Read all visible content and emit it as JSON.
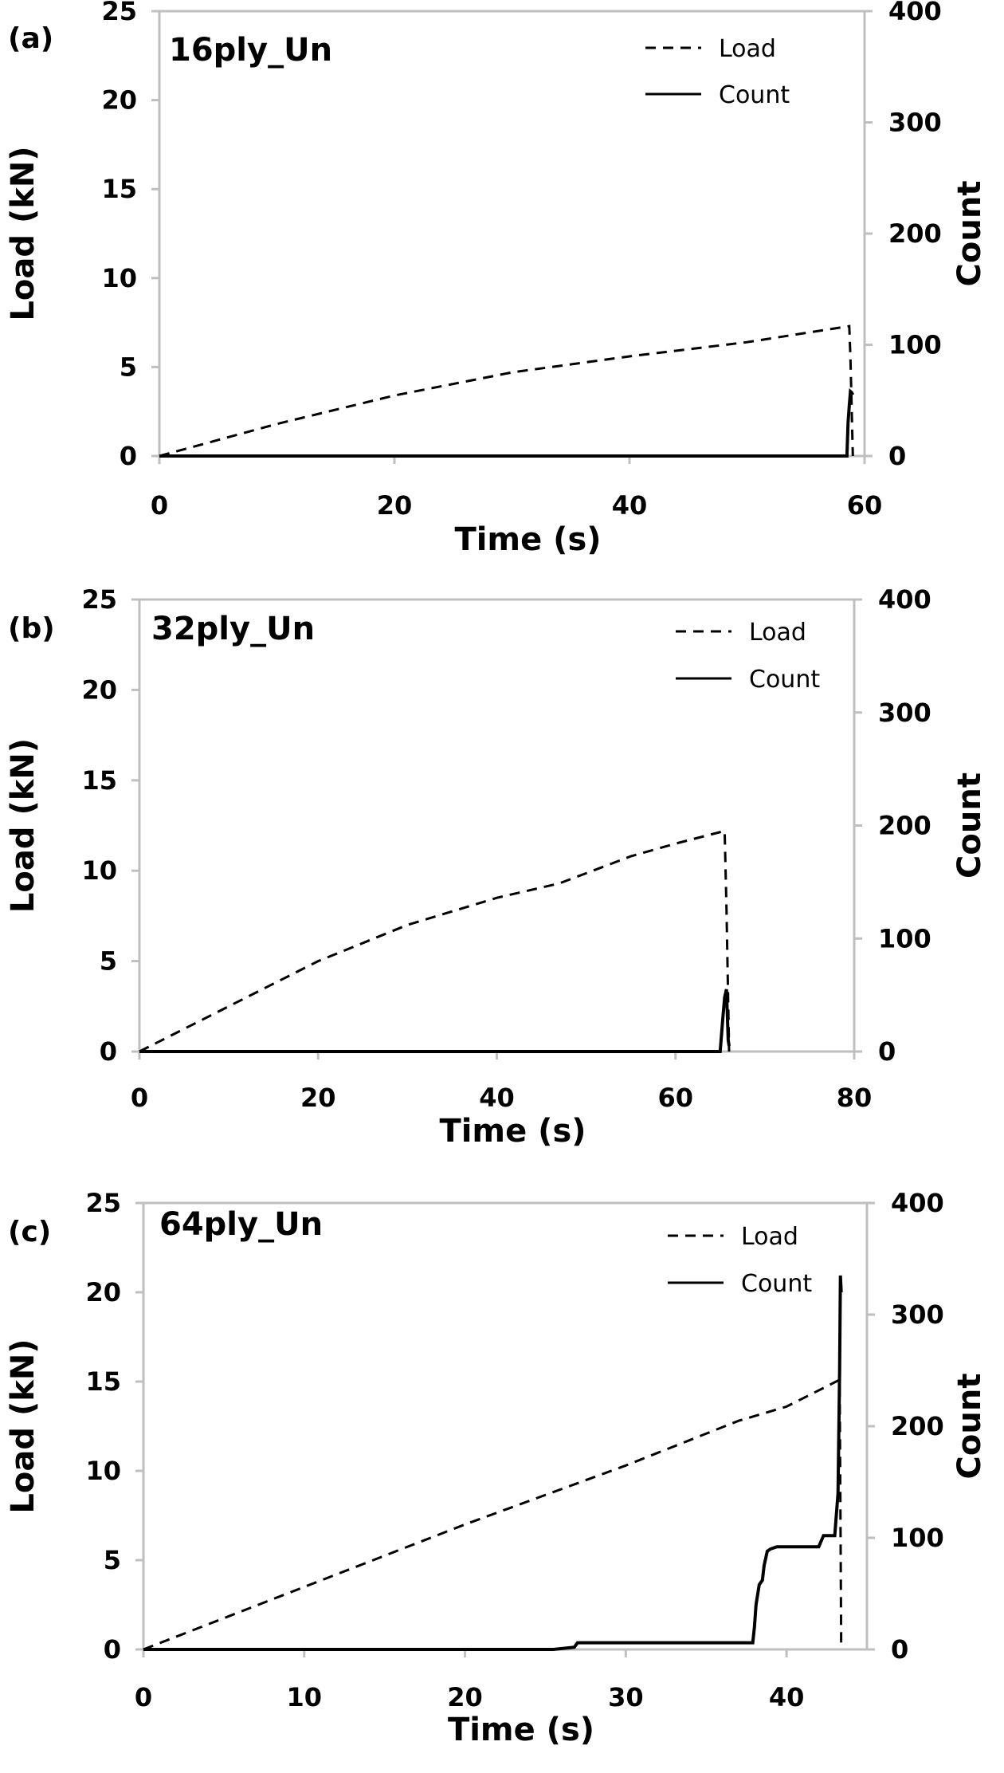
{
  "chart_data": [
    {
      "type": "line",
      "panel_label": "(a)",
      "title": "16ply_Un",
      "xlabel": "Time  (s)",
      "ylabel": "Load  (kN)",
      "y2label": "Count",
      "xlim": [
        0,
        60
      ],
      "ylim": [
        0,
        25
      ],
      "y2lim": [
        0,
        400
      ],
      "xticks": [
        "0",
        "20",
        "40",
        "60"
      ],
      "yticks": [
        "0",
        "5",
        "10",
        "15",
        "20",
        "25"
      ],
      "y2ticks": [
        "0",
        "100",
        "200",
        "300",
        "400"
      ],
      "legend": {
        "placement": "top-right",
        "entries": [
          "Load",
          "Count"
        ]
      },
      "series": [
        {
          "name": "Load",
          "axis": "left",
          "style": "dashed",
          "x": [
            0,
            10,
            20,
            30,
            40,
            50,
            58.7,
            58.8,
            59.0
          ],
          "y": [
            0,
            1.8,
            3.4,
            4.7,
            5.6,
            6.4,
            7.3,
            5.5,
            0
          ]
        },
        {
          "name": "Count",
          "axis": "right",
          "style": "solid",
          "x": [
            0,
            58.5,
            58.6,
            58.7,
            58.8,
            58.9,
            59.0
          ],
          "y": [
            0,
            0,
            30,
            45,
            58,
            57,
            55
          ]
        }
      ]
    },
    {
      "type": "line",
      "panel_label": "(b)",
      "title": "32ply_Un",
      "xlabel": "Time  (s)",
      "ylabel": "Load  (kN)",
      "y2label": "Count",
      "xlim": [
        0,
        80
      ],
      "ylim": [
        0,
        25
      ],
      "y2lim": [
        0,
        400
      ],
      "xticks": [
        "0",
        "20",
        "40",
        "60",
        "80"
      ],
      "yticks": [
        "0",
        "5",
        "10",
        "15",
        "20",
        "25"
      ],
      "y2ticks": [
        "0",
        "100",
        "200",
        "300",
        "400"
      ],
      "legend": {
        "placement": "top-right",
        "entries": [
          "Load",
          "Count"
        ]
      },
      "series": [
        {
          "name": "Load",
          "axis": "left",
          "style": "dashed",
          "x": [
            0,
            10,
            20,
            30,
            40,
            47,
            55,
            60,
            65.5,
            65.7,
            66.0
          ],
          "y": [
            0,
            2.5,
            5.0,
            7.0,
            8.5,
            9.3,
            10.8,
            11.5,
            12.2,
            8,
            0
          ]
        },
        {
          "name": "Count",
          "axis": "right",
          "style": "solid",
          "x": [
            0,
            65.0,
            65.3,
            65.5,
            65.7,
            65.9,
            66.0
          ],
          "y": [
            0,
            0,
            30,
            48,
            55,
            10,
            5
          ]
        }
      ]
    },
    {
      "type": "line",
      "panel_label": "(c)",
      "title": "64ply_Un",
      "xlabel": "Time  (s)",
      "ylabel": "Load  (kN)",
      "y2label": "Count",
      "xlim": [
        0,
        45
      ],
      "ylim": [
        0,
        25
      ],
      "y2lim": [
        0,
        400
      ],
      "xticks": [
        "0",
        "10",
        "20",
        "30",
        "40"
      ],
      "yticks": [
        "0",
        "5",
        "10",
        "15",
        "20",
        "25"
      ],
      "y2ticks": [
        "0",
        "100",
        "200",
        "300",
        "400"
      ],
      "legend": {
        "placement": "top-right",
        "entries": [
          "Load",
          "Count"
        ]
      },
      "series": [
        {
          "name": "Load",
          "axis": "left",
          "style": "dashed",
          "x": [
            0,
            10,
            20,
            30,
            37,
            40,
            43.3,
            43.35,
            43.4
          ],
          "y": [
            0,
            3.5,
            7.0,
            10.3,
            12.8,
            13.6,
            15.1,
            8,
            0
          ]
        },
        {
          "name": "Count",
          "axis": "right",
          "style": "solid",
          "x": [
            0,
            25.5,
            26.8,
            27.0,
            37.9,
            38.0,
            38.1,
            38.3,
            38.5,
            38.6,
            38.8,
            39.0,
            39.4,
            40.0,
            41.0,
            42.0,
            42.3,
            43.0,
            43.2,
            43.3,
            43.35,
            43.4
          ],
          "y": [
            0,
            0,
            2,
            6,
            6,
            20,
            40,
            58,
            62,
            75,
            88,
            90,
            92,
            92,
            92,
            92,
            102,
            102,
            140,
            250,
            335,
            320
          ]
        }
      ]
    }
  ]
}
